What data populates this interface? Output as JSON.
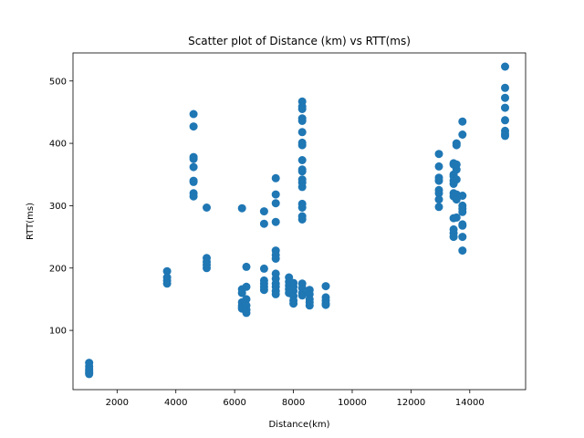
{
  "chart_data": {
    "type": "scatter",
    "title": "Scatter plot of Distance (km) vs RTT(ms)",
    "xlabel": "Distance(km)",
    "ylabel": "RTT(ms)",
    "xlim": [
      500,
      15900
    ],
    "ylim": [
      5,
      545
    ],
    "x_ticks": [
      2000,
      4000,
      6000,
      8000,
      10000,
      12000,
      14000
    ],
    "y_ticks": [
      100,
      200,
      300,
      400,
      500
    ],
    "grid": false,
    "legend": "none",
    "point_color": "#1f77b4",
    "series": [
      {
        "points": [
          [
            1050,
            48
          ],
          [
            1050,
            42
          ],
          [
            1050,
            38
          ],
          [
            1050,
            35
          ],
          [
            1050,
            32
          ],
          [
            1050,
            30
          ],
          [
            3700,
            195
          ],
          [
            3700,
            185
          ],
          [
            3700,
            180
          ],
          [
            3700,
            175
          ],
          [
            4600,
            447
          ],
          [
            4600,
            427
          ],
          [
            4600,
            378
          ],
          [
            4600,
            375
          ],
          [
            4600,
            362
          ],
          [
            4600,
            340
          ],
          [
            4600,
            338
          ],
          [
            4600,
            320
          ],
          [
            4600,
            315
          ],
          [
            5050,
            297
          ],
          [
            5050,
            216
          ],
          [
            5050,
            210
          ],
          [
            5050,
            205
          ],
          [
            5050,
            200
          ],
          [
            6250,
            296
          ],
          [
            6250,
            166
          ],
          [
            6250,
            160
          ],
          [
            6250,
            145
          ],
          [
            6250,
            140
          ],
          [
            6250,
            137
          ],
          [
            6250,
            135
          ],
          [
            6400,
            202
          ],
          [
            6400,
            170
          ],
          [
            6400,
            150
          ],
          [
            6400,
            140
          ],
          [
            6400,
            133
          ],
          [
            6400,
            128
          ],
          [
            7000,
            291
          ],
          [
            7000,
            271
          ],
          [
            7000,
            199
          ],
          [
            7000,
            180
          ],
          [
            7000,
            175
          ],
          [
            7000,
            170
          ],
          [
            7000,
            165
          ],
          [
            7400,
            344
          ],
          [
            7400,
            318
          ],
          [
            7400,
            304
          ],
          [
            7400,
            274
          ],
          [
            7400,
            228
          ],
          [
            7400,
            221
          ],
          [
            7400,
            215
          ],
          [
            7400,
            191
          ],
          [
            7400,
            183
          ],
          [
            7400,
            175
          ],
          [
            7400,
            170
          ],
          [
            7400,
            163
          ],
          [
            7400,
            158
          ],
          [
            7850,
            185
          ],
          [
            7850,
            178
          ],
          [
            7850,
            172
          ],
          [
            7850,
            166
          ],
          [
            7850,
            160
          ],
          [
            8000,
            176
          ],
          [
            8000,
            170
          ],
          [
            8000,
            163
          ],
          [
            8000,
            155
          ],
          [
            8000,
            148
          ],
          [
            8000,
            143
          ],
          [
            8300,
            467
          ],
          [
            8300,
            459
          ],
          [
            8300,
            455
          ],
          [
            8300,
            440
          ],
          [
            8300,
            436
          ],
          [
            8300,
            418
          ],
          [
            8300,
            401
          ],
          [
            8300,
            397
          ],
          [
            8300,
            373
          ],
          [
            8300,
            358
          ],
          [
            8300,
            355
          ],
          [
            8300,
            342
          ],
          [
            8300,
            337
          ],
          [
            8300,
            330
          ],
          [
            8300,
            303
          ],
          [
            8300,
            297
          ],
          [
            8300,
            283
          ],
          [
            8300,
            278
          ],
          [
            8300,
            175
          ],
          [
            8300,
            168
          ],
          [
            8300,
            160
          ],
          [
            8300,
            156
          ],
          [
            8550,
            165
          ],
          [
            8550,
            158
          ],
          [
            8550,
            150
          ],
          [
            8550,
            145
          ],
          [
            8550,
            140
          ],
          [
            9100,
            171
          ],
          [
            9100,
            153
          ],
          [
            9100,
            148
          ],
          [
            9100,
            143
          ],
          [
            9100,
            141
          ],
          [
            12950,
            383
          ],
          [
            12950,
            363
          ],
          [
            12950,
            345
          ],
          [
            12950,
            340
          ],
          [
            12950,
            325
          ],
          [
            12950,
            320
          ],
          [
            12950,
            310
          ],
          [
            12950,
            298
          ],
          [
            13450,
            368
          ],
          [
            13450,
            366
          ],
          [
            13450,
            350
          ],
          [
            13450,
            347
          ],
          [
            13450,
            340
          ],
          [
            13450,
            335
          ],
          [
            13450,
            320
          ],
          [
            13450,
            315
          ],
          [
            13450,
            280
          ],
          [
            13450,
            262
          ],
          [
            13450,
            256
          ],
          [
            13450,
            250
          ],
          [
            13550,
            400
          ],
          [
            13550,
            397
          ],
          [
            13550,
            366
          ],
          [
            13550,
            358
          ],
          [
            13550,
            342
          ],
          [
            13550,
            318
          ],
          [
            13550,
            310
          ],
          [
            13550,
            281
          ],
          [
            13750,
            435
          ],
          [
            13750,
            414
          ],
          [
            13750,
            316
          ],
          [
            13750,
            300
          ],
          [
            13750,
            295
          ],
          [
            13750,
            290
          ],
          [
            13750,
            270
          ],
          [
            13750,
            268
          ],
          [
            13750,
            250
          ],
          [
            13750,
            228
          ],
          [
            15200,
            523
          ],
          [
            15200,
            489
          ],
          [
            15200,
            473
          ],
          [
            15200,
            457
          ],
          [
            15200,
            437
          ],
          [
            15200,
            420
          ],
          [
            15200,
            415
          ],
          [
            15200,
            412
          ]
        ]
      }
    ]
  }
}
